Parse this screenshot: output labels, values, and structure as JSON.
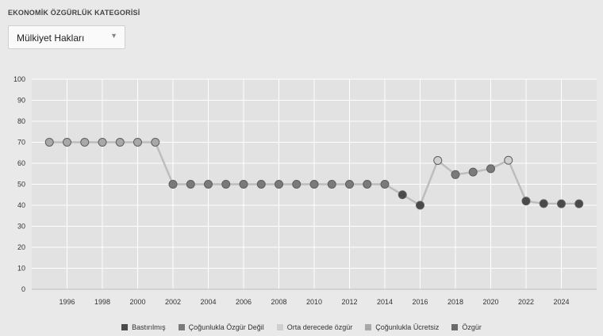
{
  "header": {
    "title": "EKONOMİK ÖZGÜRLÜK KATEGORİSİ"
  },
  "dropdown": {
    "selected": "Mülkiyet Hakları",
    "icon": "chevron-down-icon"
  },
  "colors": {
    "background": "#e9e9e9",
    "grid": "#ffffff",
    "line": "#bdbdbd",
    "bastirilmis": "#4a4a4a",
    "cogunlukla_ozgur_degil": "#7a7a7a",
    "orta_derecede_ozgur": "#cfcfcf",
    "cogunlukla_ucretsiz": "#a8a8a8",
    "ozgur": "#6a6a6a"
  },
  "legend": [
    {
      "label": "Bastırılmış",
      "color": "#4a4a4a"
    },
    {
      "label": "Çoğunlukla Özgür Değil",
      "color": "#7a7a7a"
    },
    {
      "label": "Orta derecede özgür",
      "color": "#cfcfcf"
    },
    {
      "label": "Çoğunlukla Ücretsiz",
      "color": "#a8a8a8"
    },
    {
      "label": "Özgür",
      "color": "#6a6a6a"
    }
  ],
  "chart_data": {
    "type": "line",
    "grid": true,
    "legend_position": "bottom",
    "ylim": [
      0,
      100
    ],
    "yticks": [
      0,
      10,
      20,
      30,
      40,
      50,
      60,
      70,
      80,
      90,
      100
    ],
    "xlim": [
      1994,
      2026
    ],
    "xticks": [
      1996,
      1998,
      2000,
      2002,
      2004,
      2006,
      2008,
      2010,
      2012,
      2014,
      2016,
      2018,
      2020,
      2022,
      2024
    ],
    "series": [
      {
        "points": [
          {
            "x": 1995,
            "y": 70,
            "category": "Çoğunlukla Ücretsiz"
          },
          {
            "x": 1996,
            "y": 70,
            "category": "Çoğunlukla Ücretsiz"
          },
          {
            "x": 1997,
            "y": 70,
            "category": "Çoğunlukla Ücretsiz"
          },
          {
            "x": 1998,
            "y": 70,
            "category": "Çoğunlukla Ücretsiz"
          },
          {
            "x": 1999,
            "y": 70,
            "category": "Çoğunlukla Ücretsiz"
          },
          {
            "x": 2000,
            "y": 70,
            "category": "Çoğunlukla Ücretsiz"
          },
          {
            "x": 2001,
            "y": 70,
            "category": "Çoğunlukla Ücretsiz"
          },
          {
            "x": 2002,
            "y": 50,
            "category": "Çoğunlukla Özgür Değil"
          },
          {
            "x": 2003,
            "y": 50,
            "category": "Çoğunlukla Özgür Değil"
          },
          {
            "x": 2004,
            "y": 50,
            "category": "Çoğunlukla Özgür Değil"
          },
          {
            "x": 2005,
            "y": 50,
            "category": "Çoğunlukla Özgür Değil"
          },
          {
            "x": 2006,
            "y": 50,
            "category": "Çoğunlukla Özgür Değil"
          },
          {
            "x": 2007,
            "y": 50,
            "category": "Çoğunlukla Özgür Değil"
          },
          {
            "x": 2008,
            "y": 50,
            "category": "Çoğunlukla Özgür Değil"
          },
          {
            "x": 2009,
            "y": 50,
            "category": "Çoğunlukla Özgür Değil"
          },
          {
            "x": 2010,
            "y": 50,
            "category": "Çoğunlukla Özgür Değil"
          },
          {
            "x": 2011,
            "y": 50,
            "category": "Çoğunlukla Özgür Değil"
          },
          {
            "x": 2012,
            "y": 50,
            "category": "Çoğunlukla Özgür Değil"
          },
          {
            "x": 2013,
            "y": 50,
            "category": "Çoğunlukla Özgür Değil"
          },
          {
            "x": 2014,
            "y": 50,
            "category": "Çoğunlukla Özgür Değil"
          },
          {
            "x": 2015,
            "y": 45,
            "category": "Bastırılmış"
          },
          {
            "x": 2016,
            "y": 40,
            "category": "Bastırılmış"
          },
          {
            "x": 2017,
            "y": 61.3,
            "category": "Orta derecede özgür"
          },
          {
            "x": 2018,
            "y": 54.6,
            "category": "Çoğunlukla Özgür Değil"
          },
          {
            "x": 2019,
            "y": 55.8,
            "category": "Çoğunlukla Özgür Değil"
          },
          {
            "x": 2020,
            "y": 57.4,
            "category": "Çoğunlukla Özgür Değil"
          },
          {
            "x": 2021,
            "y": 61.4,
            "category": "Orta derecede özgür"
          },
          {
            "x": 2022,
            "y": 42,
            "category": "Bastırılmış"
          },
          {
            "x": 2023,
            "y": 40.8,
            "category": "Bastırılmış"
          },
          {
            "x": 2024,
            "y": 40.7,
            "category": "Bastırılmış"
          },
          {
            "x": 2025,
            "y": 40.7,
            "category": "Bastırılmış"
          }
        ]
      }
    ]
  }
}
